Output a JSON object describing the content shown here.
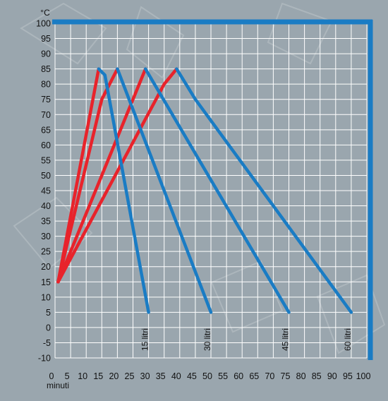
{
  "chart_data": {
    "type": "line",
    "title": "",
    "xlabel": "minuti",
    "ylabel": "°C",
    "xlim": [
      0,
      100
    ],
    "ylim": [
      -10,
      100
    ],
    "x_ticks": [
      0,
      5,
      10,
      15,
      20,
      25,
      30,
      35,
      40,
      45,
      50,
      55,
      60,
      65,
      70,
      75,
      80,
      85,
      90,
      95,
      100
    ],
    "y_ticks": [
      -10,
      -5,
      0,
      5,
      10,
      15,
      20,
      25,
      30,
      35,
      40,
      45,
      50,
      55,
      60,
      65,
      70,
      75,
      80,
      85,
      90,
      95,
      100
    ],
    "grid": true,
    "series": [
      {
        "name": "15 litri",
        "heating": [
          [
            1,
            15
          ],
          [
            14,
            85
          ]
        ],
        "cooling": [
          [
            14,
            85
          ],
          [
            16,
            83
          ],
          [
            30,
            5
          ]
        ],
        "label_x": 30
      },
      {
        "name": "30 litri",
        "heating": [
          [
            1,
            15
          ],
          [
            15,
            75
          ],
          [
            20,
            85
          ]
        ],
        "cooling": [
          [
            20,
            85
          ],
          [
            50,
            5
          ]
        ],
        "label_x": 50
      },
      {
        "name": "45 litri",
        "heating": [
          [
            1,
            15
          ],
          [
            29,
            85
          ]
        ],
        "cooling": [
          [
            29,
            85
          ],
          [
            75,
            5
          ]
        ],
        "label_x": 75
      },
      {
        "name": "60 litri",
        "heating": [
          [
            1,
            15
          ],
          [
            35,
            80
          ],
          [
            39,
            85
          ]
        ],
        "cooling": [
          [
            39,
            85
          ],
          [
            45,
            75
          ],
          [
            95,
            5
          ]
        ],
        "label_x": 95
      }
    ],
    "colors": {
      "heating": "#e8232b",
      "cooling": "#1a7cc4",
      "frame": "#1a7cc4",
      "grid": "#ffffff",
      "background": "#9aa6ae"
    }
  }
}
